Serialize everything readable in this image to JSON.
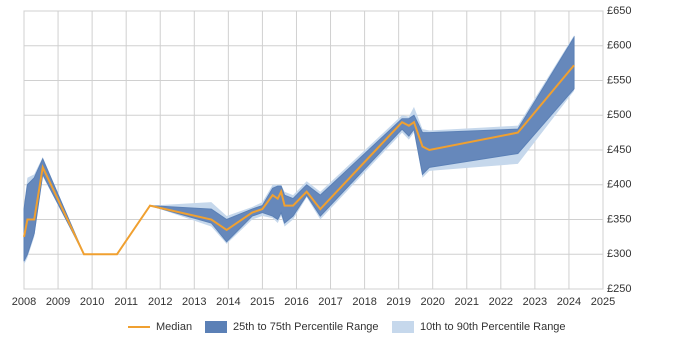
{
  "chart_data": {
    "type": "line",
    "x": [
      2008.0,
      2008.1,
      2008.3,
      2008.55,
      2009.76,
      2010.73,
      2011.7,
      2013.5,
      2013.95,
      2014.7,
      2015.0,
      2015.3,
      2015.45,
      2015.55,
      2015.65,
      2015.9,
      2016.3,
      2016.7,
      2019.1,
      2019.3,
      2019.45,
      2019.7,
      2019.9,
      2022.5,
      2024.15
    ],
    "series": [
      {
        "name": "Median",
        "color": "#f0a030",
        "values": [
          325,
          350,
          350,
          425,
          300,
          300,
          370,
          350,
          335,
          360,
          365,
          385,
          380,
          390,
          370,
          370,
          390,
          365,
          490,
          485,
          490,
          455,
          450,
          475,
          572
        ]
      },
      {
        "name": "25th to 75th Percentile Range",
        "color": "#5b80b6",
        "low": [
          290,
          300,
          330,
          415,
          300,
          300,
          370,
          345,
          318,
          355,
          360,
          355,
          350,
          360,
          345,
          355,
          385,
          355,
          480,
          470,
          480,
          415,
          425,
          445,
          538
        ],
        "high": [
          365,
          400,
          410,
          437,
          300,
          300,
          370,
          365,
          350,
          365,
          370,
          395,
          398,
          398,
          385,
          380,
          400,
          385,
          495,
          495,
          500,
          475,
          475,
          480,
          612
        ]
      },
      {
        "name": "10th to 90th Percentile Range",
        "color": "#c6d8ec",
        "low": [
          285,
          295,
          325,
          412,
          300,
          300,
          370,
          340,
          315,
          350,
          355,
          352,
          345,
          355,
          340,
          350,
          382,
          350,
          475,
          465,
          475,
          410,
          420,
          430,
          535
        ],
        "high": [
          370,
          410,
          415,
          440,
          300,
          300,
          370,
          375,
          355,
          368,
          375,
          400,
          400,
          400,
          390,
          385,
          405,
          390,
          500,
          498,
          512,
          480,
          478,
          485,
          615
        ]
      }
    ],
    "xlim": [
      2008,
      2025
    ],
    "xticks": [
      2008,
      2009,
      2010,
      2011,
      2012,
      2013,
      2014,
      2015,
      2016,
      2017,
      2018,
      2019,
      2020,
      2021,
      2022,
      2023,
      2024,
      2025
    ],
    "ylim": [
      250,
      650
    ],
    "yticks": [
      {
        "value": 250,
        "label": "£250"
      },
      {
        "value": 300,
        "label": "£300"
      },
      {
        "value": 350,
        "label": "£350"
      },
      {
        "value": 400,
        "label": "£400"
      },
      {
        "value": 450,
        "label": "£450"
      },
      {
        "value": 500,
        "label": "£500"
      },
      {
        "value": 550,
        "label": "£550"
      },
      {
        "value": 600,
        "label": "£600"
      },
      {
        "value": 650,
        "label": "£650"
      }
    ],
    "grid": true,
    "y_axis_side": "right",
    "legend": "bottom"
  }
}
